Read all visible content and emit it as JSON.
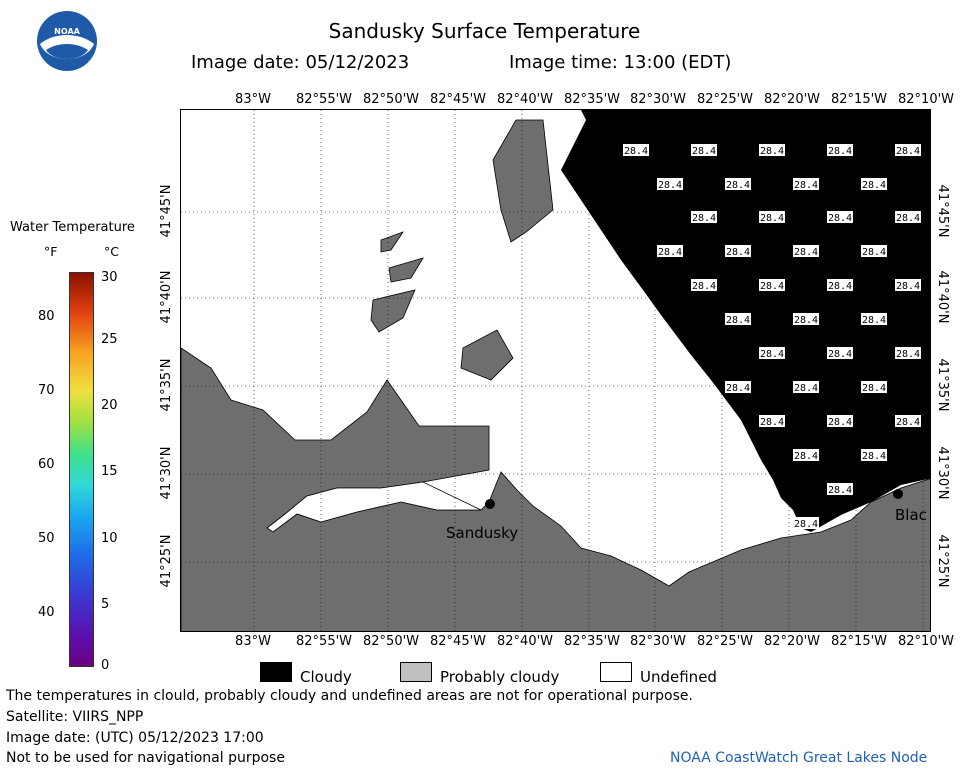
{
  "header": {
    "title": "Sandusky Surface Temperature",
    "image_date_label": "Image date: 05/12/2023",
    "image_time_label": "Image time: 13:00 (EDT)"
  },
  "logo_text": "NOAA",
  "colorbar": {
    "title": "Water Temperature",
    "unit_f": "°F",
    "unit_c": "°C",
    "f_ticks": [
      "80",
      "70",
      "60",
      "50",
      "40"
    ],
    "c_ticks": [
      "30",
      "25",
      "20",
      "15",
      "10",
      "5",
      "0"
    ]
  },
  "map": {
    "lon_labels": [
      "83°W",
      "82°55'W",
      "82°50'W",
      "82°45'W",
      "82°40'W",
      "82°35'W",
      "82°30'W",
      "82°25'W",
      "82°20'W",
      "82°15'W",
      "82°10'W"
    ],
    "lon_labels_bottom": [
      "83°W",
      "82°55'W",
      "82°50'W",
      "82°45'W",
      "82°40'W",
      "82°35'W",
      "82°30'W",
      "82°25'W",
      "82°20'W",
      "82°15'W",
      "82°10'W"
    ],
    "lat_labels": [
      "41°45'N",
      "41°40'N",
      "41°35'N",
      "41°30'N",
      "41°25'N"
    ],
    "city_sandusky": "Sandusky",
    "city_blac": "Blac",
    "cloud_value": "28.4"
  },
  "key": {
    "cloudy": "Cloudy",
    "probably_cloudy": "Probably cloudy",
    "undefined": "Undefined",
    "colors": {
      "cloudy": "#000000",
      "probably_cloudy": "#bfbfbf",
      "undefined": "#ffffff",
      "land": "#6e6e6e"
    }
  },
  "footer": {
    "line1": "The temperatures in clould, probably cloudy and undefined areas are not for operational purpose.",
    "line2": "Satellite: VIIRS_NPP",
    "line3": "Image date: (UTC) 05/12/2023  17:00",
    "line4": "Not to be used for navigational purpose",
    "credit": "NOAA CoastWatch Great Lakes Node"
  }
}
